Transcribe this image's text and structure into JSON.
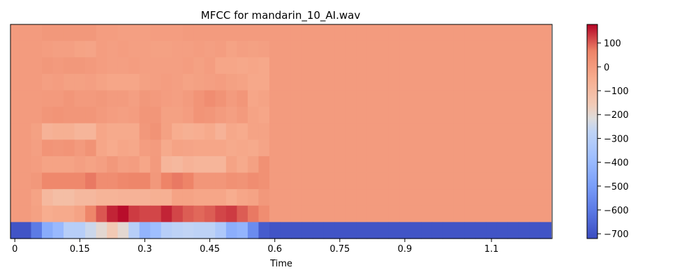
{
  "chart_data": {
    "type": "heatmap",
    "title": "MFCC for mandarin_10_AI.wav",
    "xlabel": "Time",
    "ylabel": "",
    "x_range": [
      -0.01,
      1.24
    ],
    "x_ticks": [
      0,
      0.15,
      0.3,
      0.45,
      0.6,
      0.75,
      0.9,
      1.1
    ],
    "frame_times": [
      0.0,
      0.025,
      0.05,
      0.075,
      0.1,
      0.125,
      0.15,
      0.175,
      0.2,
      0.225,
      0.25,
      0.275,
      0.3,
      0.325,
      0.35,
      0.375,
      0.4,
      0.425,
      0.45,
      0.475,
      0.5,
      0.525,
      0.55,
      0.575,
      0.6,
      0.625,
      0.65,
      0.675,
      0.7,
      0.725,
      0.75,
      0.775,
      0.8,
      0.825,
      0.85,
      0.875,
      0.9,
      0.925,
      0.95,
      0.975,
      1.0,
      1.025,
      1.05,
      1.075,
      1.1,
      1.125,
      1.15,
      1.175,
      1.2,
      1.225
    ],
    "n_coefficients": 13,
    "colorbar": {
      "colormap": "coolwarm",
      "vmin": -720,
      "vmax": 178,
      "ticks": [
        100,
        0,
        -100,
        -200,
        -300,
        -400,
        -500,
        -600,
        -700
      ],
      "tick_labels": [
        "100",
        "0",
        "−100",
        "−200",
        "−300",
        "−400",
        "−500",
        "−600",
        "−700"
      ]
    },
    "rows": [
      [
        0,
        0,
        0,
        10,
        10,
        10,
        10,
        10,
        -5,
        -5,
        -10,
        -10,
        -10,
        -5,
        -5,
        -5,
        0,
        0,
        0,
        0,
        0,
        0,
        0,
        0,
        0,
        0,
        0,
        0,
        0,
        0,
        0,
        0,
        0,
        0,
        0,
        0,
        0,
        0,
        0,
        0,
        0,
        0,
        0,
        0,
        0,
        0,
        0,
        0,
        0,
        0
      ],
      [
        0,
        0,
        0,
        -5,
        -10,
        -10,
        -20,
        -25,
        -5,
        -10,
        -5,
        -10,
        -10,
        -15,
        -15,
        -10,
        -10,
        -5,
        -10,
        -5,
        -20,
        -10,
        -15,
        -10,
        0,
        0,
        0,
        0,
        0,
        0,
        0,
        0,
        0,
        0,
        0,
        0,
        0,
        0,
        0,
        0,
        0,
        0,
        0,
        0,
        0,
        0,
        0,
        0,
        0,
        0
      ],
      [
        0,
        0,
        0,
        10,
        5,
        10,
        10,
        5,
        -5,
        -10,
        -10,
        -5,
        -10,
        -10,
        -10,
        -10,
        -5,
        -15,
        -5,
        -30,
        -30,
        -35,
        -30,
        -35,
        0,
        0,
        0,
        0,
        0,
        0,
        0,
        0,
        0,
        0,
        0,
        0,
        0,
        0,
        0,
        0,
        0,
        0,
        0,
        0,
        0,
        0,
        0,
        0,
        0,
        0
      ],
      [
        0,
        0,
        0,
        -10,
        -5,
        -15,
        -15,
        -10,
        -20,
        -30,
        -30,
        -30,
        -15,
        -10,
        -5,
        -10,
        -20,
        -15,
        -10,
        -5,
        -15,
        -20,
        -35,
        -35,
        0,
        0,
        0,
        0,
        0,
        0,
        0,
        0,
        0,
        0,
        0,
        0,
        0,
        0,
        0,
        0,
        0,
        0,
        0,
        0,
        0,
        0,
        0,
        0,
        0,
        0
      ],
      [
        0,
        0,
        0,
        5,
        5,
        15,
        5,
        5,
        10,
        0,
        0,
        -10,
        10,
        5,
        -5,
        -10,
        0,
        20,
        40,
        25,
        0,
        15,
        -30,
        -20,
        0,
        0,
        0,
        0,
        0,
        0,
        0,
        0,
        0,
        0,
        0,
        0,
        0,
        0,
        0,
        0,
        0,
        0,
        0,
        0,
        0,
        0,
        0,
        0,
        0,
        0
      ],
      [
        0,
        0,
        0,
        15,
        20,
        15,
        15,
        15,
        5,
        -5,
        -10,
        -5,
        15,
        15,
        -15,
        -15,
        -5,
        20,
        15,
        0,
        -10,
        5,
        -20,
        -30,
        0,
        0,
        0,
        0,
        0,
        0,
        0,
        0,
        0,
        0,
        0,
        0,
        0,
        0,
        0,
        0,
        0,
        0,
        0,
        0,
        0,
        0,
        0,
        0,
        0,
        0
      ],
      [
        0,
        0,
        -15,
        -70,
        -60,
        -60,
        -80,
        -80,
        -30,
        -40,
        -40,
        -40,
        10,
        25,
        -15,
        -50,
        -60,
        -55,
        -40,
        -70,
        -35,
        -45,
        -20,
        -20,
        0,
        0,
        0,
        0,
        0,
        0,
        0,
        0,
        0,
        0,
        0,
        0,
        0,
        0,
        0,
        0,
        0,
        0,
        0,
        0,
        0,
        0,
        0,
        0,
        0,
        0
      ],
      [
        0,
        0,
        -10,
        20,
        15,
        20,
        5,
        25,
        -30,
        -45,
        -30,
        -35,
        -5,
        0,
        -40,
        -20,
        -25,
        -30,
        -30,
        -30,
        -40,
        -35,
        -40,
        -25,
        0,
        0,
        0,
        0,
        0,
        0,
        0,
        0,
        0,
        0,
        0,
        0,
        0,
        0,
        0,
        0,
        0,
        0,
        0,
        0,
        0,
        0,
        0,
        0,
        0,
        0
      ],
      [
        0,
        0,
        -5,
        -20,
        -20,
        -20,
        -10,
        -20,
        -10,
        10,
        -10,
        -5,
        -30,
        5,
        -80,
        -90,
        -70,
        -80,
        -80,
        -80,
        -20,
        -40,
        -15,
        30,
        0,
        0,
        0,
        0,
        0,
        0,
        0,
        0,
        0,
        0,
        0,
        0,
        0,
        0,
        0,
        0,
        0,
        0,
        0,
        0,
        0,
        0,
        0,
        0,
        0,
        0
      ],
      [
        0,
        0,
        10,
        55,
        55,
        55,
        55,
        75,
        40,
        40,
        55,
        60,
        60,
        10,
        65,
        75,
        65,
        15,
        15,
        15,
        30,
        25,
        40,
        30,
        0,
        0,
        0,
        0,
        0,
        0,
        0,
        0,
        0,
        0,
        0,
        0,
        0,
        0,
        0,
        0,
        0,
        0,
        0,
        0,
        0,
        0,
        0,
        0,
        0,
        0
      ],
      [
        0,
        0,
        -20,
        -90,
        -110,
        -110,
        -90,
        -90,
        -75,
        -75,
        -70,
        -70,
        -70,
        -60,
        -60,
        -20,
        -20,
        -30,
        -30,
        -30,
        -50,
        -30,
        -20,
        10,
        0,
        0,
        0,
        0,
        0,
        0,
        0,
        0,
        0,
        0,
        0,
        0,
        0,
        0,
        0,
        0,
        0,
        0,
        0,
        0,
        0,
        0,
        0,
        0,
        0,
        0
      ],
      [
        0,
        0,
        -15,
        -50,
        -40,
        -40,
        -20,
        60,
        105,
        150,
        170,
        130,
        120,
        120,
        150,
        120,
        100,
        90,
        100,
        120,
        130,
        100,
        75,
        40,
        0,
        0,
        0,
        0,
        0,
        0,
        0,
        0,
        0,
        0,
        0,
        0,
        0,
        0,
        0,
        0,
        0,
        0,
        0,
        0,
        0,
        0,
        0,
        0,
        0,
        0
      ],
      [
        -700,
        -700,
        -600,
        -450,
        -400,
        -300,
        -300,
        -250,
        -200,
        -150,
        -200,
        -300,
        -420,
        -380,
        -300,
        -280,
        -270,
        -280,
        -280,
        -330,
        -440,
        -420,
        -550,
        -680,
        -700,
        -700,
        -700,
        -700,
        -700,
        -700,
        -700,
        -700,
        -700,
        -700,
        -700,
        -700,
        -700,
        -700,
        -700,
        -700,
        -700,
        -700,
        -700,
        -700,
        -700,
        -700,
        -700,
        -700,
        -700,
        -700
      ]
    ]
  }
}
